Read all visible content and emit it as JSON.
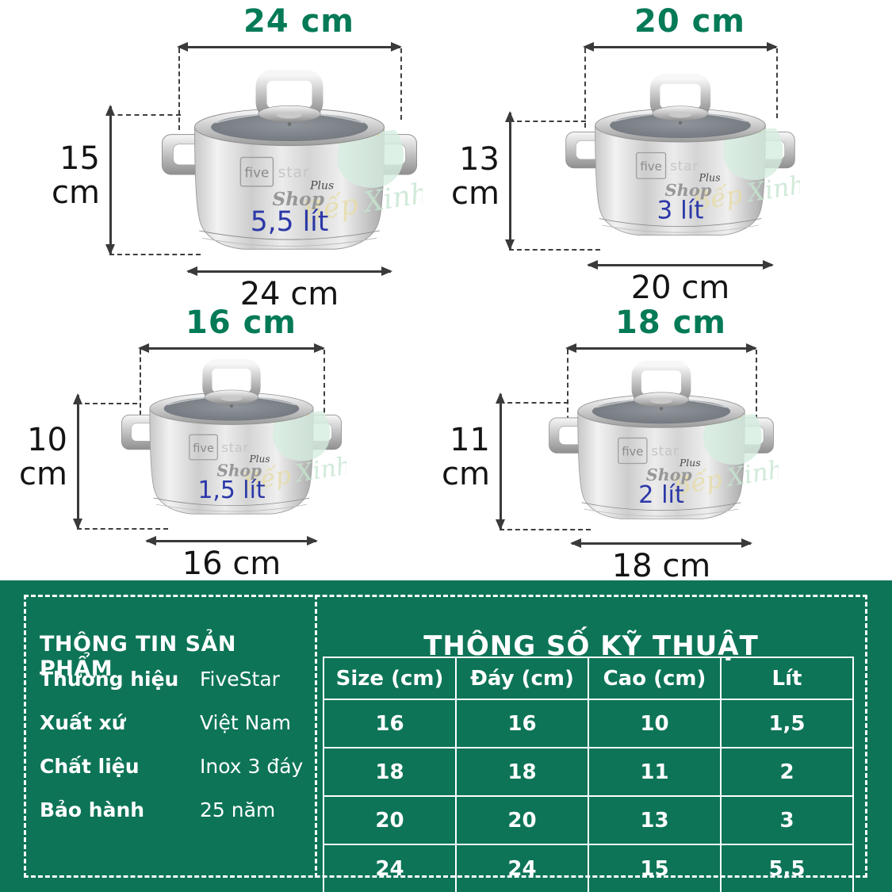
{
  "colors": {
    "band_green": "#0d7457",
    "dimension_green": "#047a57",
    "volume_blue": "#2b38a8",
    "line_dark": "#3a3a3a"
  },
  "logo": {
    "five": "five",
    "star": "star",
    "plus": "Plus",
    "shop": "Shop"
  },
  "watermark": {
    "bep": "Bếp",
    "xinh": "Xinh"
  },
  "pots": [
    {
      "top_label": "24 cm",
      "height_value": "15",
      "height_unit": "cm",
      "bottom_label": "24 cm",
      "volume": "5,5 lít"
    },
    {
      "top_label": "20 cm",
      "height_value": "13",
      "height_unit": "cm",
      "bottom_label": "20 cm",
      "volume": "3 lít"
    },
    {
      "top_label": "16 cm",
      "height_value": "10",
      "height_unit": "cm",
      "bottom_label": "16 cm",
      "volume": "1,5 lít"
    },
    {
      "top_label": "18 cm",
      "height_value": "11",
      "height_unit": "cm",
      "bottom_label": "18 cm",
      "volume": "2 lít"
    }
  ],
  "product_info": {
    "title": "THÔNG TIN SẢN PHẨM",
    "rows": [
      {
        "label": "Thương hiệu",
        "value": "FiveStar"
      },
      {
        "label": "Xuất xứ",
        "value": "Việt Nam"
      },
      {
        "label": "Chất liệu",
        "value": "Inox 3 đáy"
      },
      {
        "label": "Bảo hành",
        "value": "25 năm"
      }
    ]
  },
  "spec_table": {
    "title": "THÔNG SỐ KỸ THUẬT",
    "headers": [
      "Size (cm)",
      "Đáy (cm)",
      "Cao (cm)",
      "Lít"
    ],
    "rows": [
      [
        "16",
        "16",
        "10",
        "1,5"
      ],
      [
        "18",
        "18",
        "11",
        "2"
      ],
      [
        "20",
        "20",
        "13",
        "3"
      ],
      [
        "24",
        "24",
        "15",
        "5,5"
      ]
    ]
  }
}
